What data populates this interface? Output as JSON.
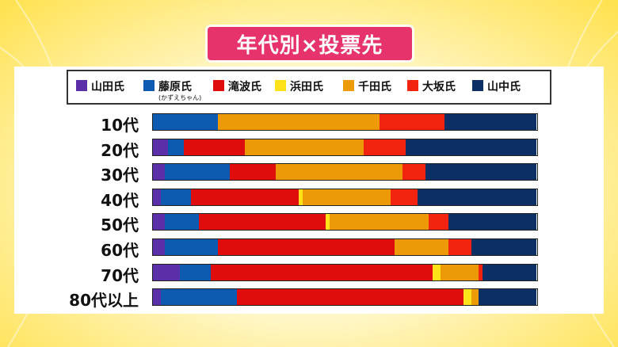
{
  "title": "年代別×投票先",
  "colors": {
    "山田氏": "#5b2fa8",
    "藤原氏": "#0d5bb0",
    "滝波氏": "#e00d0d",
    "浜田氏": "#ffe21a",
    "千田氏": "#ec9a08",
    "大坂氏": "#f2240f",
    "山中氏": "#0c2f66"
  },
  "legend_sub": "(かずえちゃん)",
  "chart_data": {
    "type": "bar",
    "stacked": true,
    "orientation": "horizontal",
    "title": "年代別×投票先",
    "unit": "%",
    "xlim": [
      0,
      100
    ],
    "categories": [
      "10代",
      "20代",
      "30代",
      "40代",
      "50代",
      "60代",
      "70代",
      "80代以上"
    ],
    "series": [
      {
        "name": "山田氏",
        "values": [
          0,
          4,
          3,
          2,
          3,
          3,
          7,
          2
        ]
      },
      {
        "name": "藤原氏",
        "values": [
          17,
          4,
          17,
          8,
          9,
          14,
          8,
          20
        ]
      },
      {
        "name": "滝波氏",
        "values": [
          0,
          16,
          12,
          28,
          33,
          46,
          58,
          59
        ]
      },
      {
        "name": "浜田氏",
        "values": [
          0,
          0,
          0,
          1,
          1,
          0,
          2,
          2
        ]
      },
      {
        "name": "千田氏",
        "values": [
          42,
          31,
          33,
          23,
          26,
          14,
          10,
          2
        ]
      },
      {
        "name": "大坂氏",
        "values": [
          17,
          11,
          6,
          7,
          5,
          6,
          1,
          0
        ]
      },
      {
        "name": "山中氏",
        "values": [
          24,
          34,
          29,
          31,
          23,
          17,
          14,
          15
        ]
      }
    ],
    "legend_position": "top"
  }
}
